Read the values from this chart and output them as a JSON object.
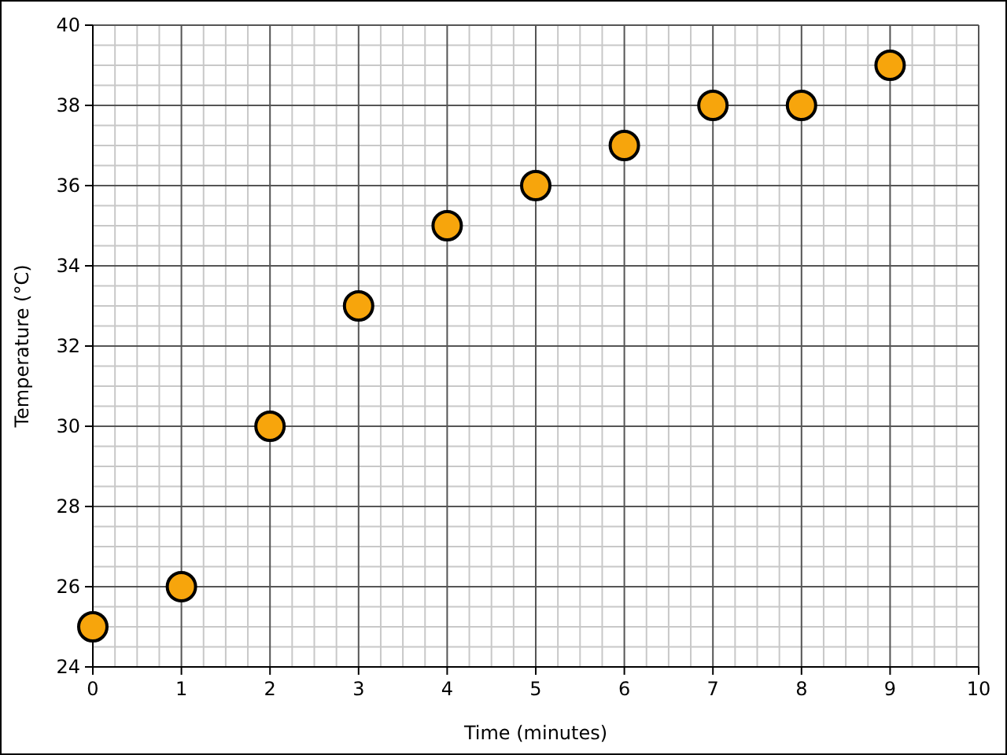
{
  "chart_data": {
    "type": "scatter",
    "xlabel": "Time (minutes)",
    "ylabel": "Temperature (°C)",
    "x": [
      0,
      1,
      2,
      3,
      4,
      5,
      6,
      7,
      8,
      9
    ],
    "series": [
      {
        "color": "#f7a50c",
        "values": [
          25,
          26,
          30,
          33,
          35,
          36,
          37,
          38,
          38,
          39
        ]
      }
    ],
    "xlim": [
      0,
      10
    ],
    "ylim": [
      24,
      40
    ],
    "xticks": [
      0,
      1,
      2,
      3,
      4,
      5,
      6,
      7,
      8,
      9,
      10
    ],
    "yticks": [
      24,
      26,
      28,
      30,
      32,
      34,
      36,
      38,
      40
    ],
    "grid": true,
    "marker": "circle"
  }
}
